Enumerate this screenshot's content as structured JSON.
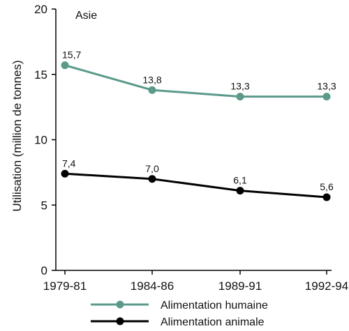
{
  "chart_data": {
    "type": "line",
    "title": "",
    "panel_label": "Asie",
    "ylabel": "Utilisation (million de tonnes)",
    "xlabel": "",
    "categories": [
      "1979-81",
      "1984-86",
      "1989-91",
      "1992-94"
    ],
    "ylim": [
      0,
      20
    ],
    "yticks": [
      0,
      5,
      10,
      15,
      20
    ],
    "grid": false,
    "legend_position": "bottom",
    "series": [
      {
        "name": "Alimentation humaine",
        "color": "#5b9a8b",
        "values": [
          15.7,
          13.8,
          13.3,
          13.3
        ],
        "labels": [
          "15,7",
          "13,8",
          "13,3",
          "13,3"
        ]
      },
      {
        "name": "Alimentation animale",
        "color": "#000000",
        "values": [
          7.4,
          7.0,
          6.1,
          5.6
        ],
        "labels": [
          "7,4",
          "7,0",
          "6,1",
          "5,6"
        ]
      }
    ]
  }
}
